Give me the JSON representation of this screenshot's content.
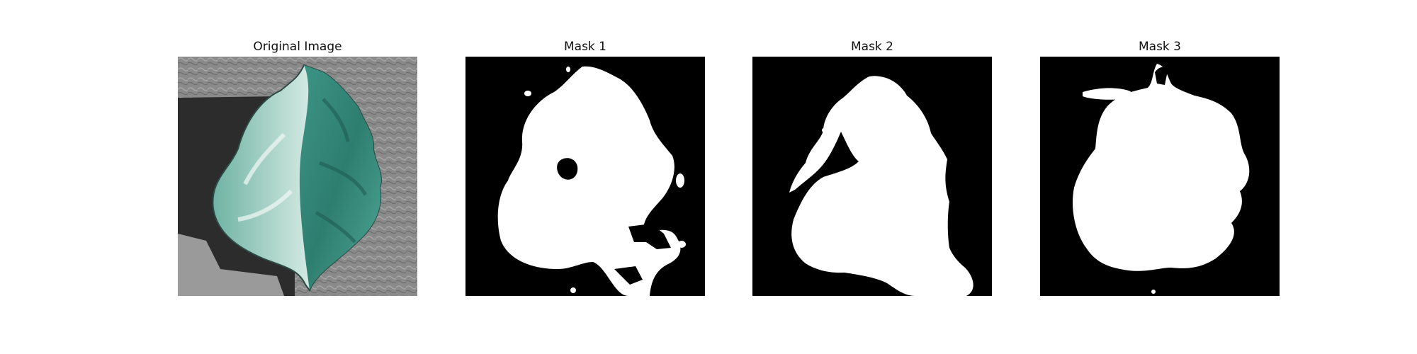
{
  "panels": [
    {
      "title": "Original Image"
    },
    {
      "title": "Mask 1"
    },
    {
      "title": "Mask 2"
    },
    {
      "title": "Mask 3"
    }
  ],
  "colors": {
    "mask_background": "#000000",
    "mask_foreground": "#ffffff",
    "leaf_teal": "#3f9a8a",
    "leaf_pale": "#cfe6dd",
    "texture_gray": "#8c8c8c",
    "shadow_dark": "#2b2b2b"
  }
}
